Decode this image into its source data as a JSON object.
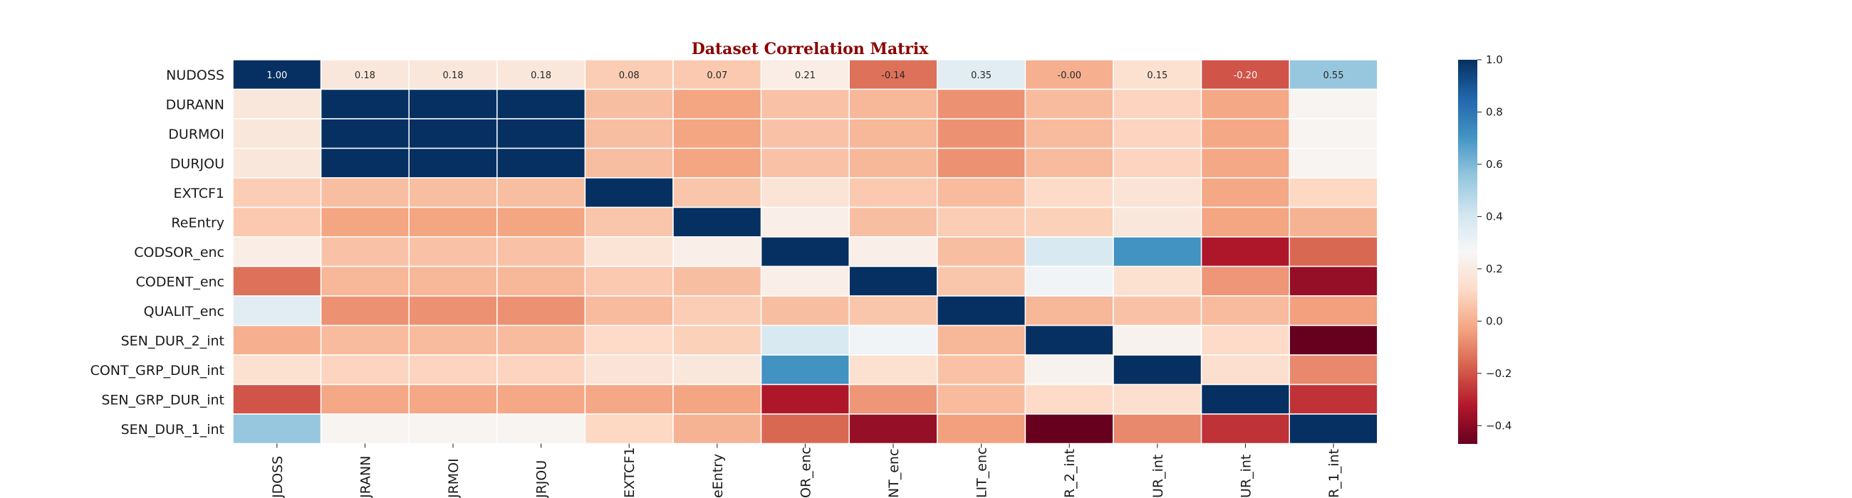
{
  "chart_data": {
    "type": "heatmap",
    "title": "Dataset Correlation Matrix",
    "row_labels": [
      "NUDOSS",
      "DURANN",
      "DURMOI",
      "DURJOU",
      "EXTCF1",
      "ReEntry",
      "CODSOR_enc",
      "CODENT_enc",
      "QUALIT_enc",
      "SEN_DUR_2_int",
      "CONT_GRP_DUR_int",
      "SEN_GRP_DUR_int",
      "SEN_DUR_1_int"
    ],
    "col_labels_visible": [
      "JDOSS",
      "JRANN",
      "JRMOI",
      "JRJOU",
      "EXTCF1",
      "eEntry",
      "OR_enc",
      "NT_enc",
      "LIT_enc",
      "R_2_int",
      "UR_int",
      "UR_int",
      "R_1_int"
    ],
    "values": [
      [
        1.0,
        0.18,
        0.18,
        0.18,
        0.08,
        0.07,
        0.21,
        -0.14,
        0.35,
        -0.0,
        0.15,
        -0.2,
        0.55
      ],
      [
        0.18,
        1.0,
        1.0,
        1.0,
        0.04,
        -0.03,
        0.05,
        0.02,
        -0.07,
        0.03,
        0.1,
        -0.02,
        0.25
      ],
      [
        0.18,
        1.0,
        1.0,
        1.0,
        0.04,
        -0.03,
        0.05,
        0.02,
        -0.07,
        0.03,
        0.1,
        -0.02,
        0.25
      ],
      [
        0.18,
        1.0,
        1.0,
        1.0,
        0.04,
        -0.03,
        0.05,
        0.02,
        -0.07,
        0.03,
        0.1,
        -0.02,
        0.25
      ],
      [
        0.08,
        0.04,
        0.04,
        0.04,
        1.0,
        0.06,
        0.16,
        0.07,
        0.03,
        0.12,
        0.16,
        -0.02,
        0.11
      ],
      [
        0.07,
        -0.03,
        -0.03,
        -0.03,
        0.06,
        1.0,
        0.22,
        0.04,
        0.08,
        0.09,
        0.18,
        -0.03,
        0.01
      ],
      [
        0.21,
        0.05,
        0.05,
        0.05,
        0.16,
        0.22,
        1.0,
        0.22,
        0.04,
        0.38,
        0.71,
        -0.33,
        -0.16
      ],
      [
        -0.14,
        0.02,
        0.02,
        0.02,
        0.07,
        0.04,
        0.22,
        1.0,
        0.06,
        0.29,
        0.15,
        -0.06,
        -0.38
      ],
      [
        0.35,
        -0.07,
        -0.07,
        -0.07,
        0.03,
        0.08,
        0.04,
        0.06,
        1.0,
        0.02,
        0.05,
        0.03,
        -0.04
      ],
      [
        -0.0,
        0.03,
        0.03,
        0.03,
        0.12,
        0.09,
        0.38,
        0.29,
        0.02,
        1.0,
        0.24,
        0.12,
        -0.47
      ],
      [
        0.15,
        0.1,
        0.1,
        0.1,
        0.16,
        0.18,
        0.71,
        0.15,
        0.05,
        0.24,
        1.0,
        0.14,
        -0.09
      ],
      [
        -0.2,
        -0.02,
        -0.02,
        -0.02,
        -0.02,
        -0.03,
        -0.33,
        -0.06,
        0.03,
        0.12,
        0.14,
        1.0,
        -0.27
      ],
      [
        0.55,
        0.25,
        0.25,
        0.25,
        0.11,
        0.01,
        -0.16,
        -0.38,
        -0.04,
        -0.47,
        -0.09,
        -0.27,
        1.0
      ]
    ],
    "annotated_row": 0,
    "annotations": [
      "1.00",
      "0.18",
      "0.18",
      "0.18",
      "0.08",
      "0.07",
      "0.21",
      "-0.14",
      "0.35",
      "-0.00",
      "0.15",
      "-0.20",
      "0.55"
    ],
    "colormap": "RdBu",
    "vmin": -0.47,
    "vmax": 1.0,
    "colorbar_ticks": [
      "1.0",
      "0.8",
      "0.6",
      "0.4",
      "0.2",
      "0.0",
      "−0.2",
      "−0.4"
    ],
    "colorbar_tick_values": [
      1.0,
      0.8,
      0.6,
      0.4,
      0.2,
      0.0,
      -0.2,
      -0.4
    ],
    "grid_line_color": "#ffffff",
    "title_color": "#8b0000"
  }
}
